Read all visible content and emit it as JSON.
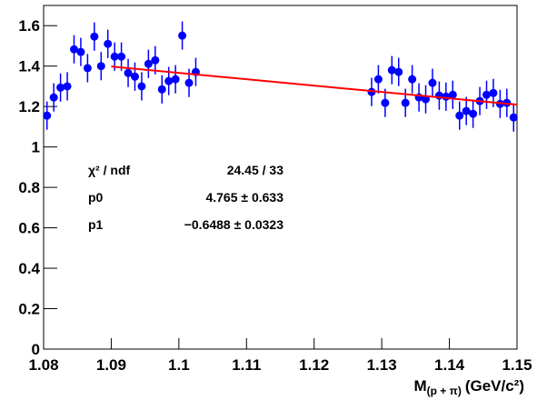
{
  "chart_data": {
    "type": "scatter",
    "xlim": [
      1.08,
      1.15
    ],
    "ylim": [
      0,
      1.7
    ],
    "xticks": [
      1.08,
      1.09,
      1.1,
      1.11,
      1.12,
      1.13,
      1.14,
      1.15
    ],
    "yticks": [
      0,
      0.2,
      0.4,
      0.6,
      0.8,
      1,
      1.2,
      1.4,
      1.6
    ],
    "xlabel": "M",
    "xlabel_sub": "(p + π)",
    "xlabel_unit": "(GeV/c²)",
    "series": [
      {
        "color": "#0000ff",
        "x": [
          1.0805,
          1.0815,
          1.0825,
          1.0835,
          1.0845,
          1.0855,
          1.0865,
          1.0875,
          1.0885,
          1.0895,
          1.0905,
          1.0915,
          1.0925,
          1.0935,
          1.0945,
          1.0955,
          1.0965,
          1.0975,
          1.0985,
          1.0995,
          1.1005,
          1.1015,
          1.1025,
          1.1285,
          1.1295,
          1.1305,
          1.1315,
          1.1325,
          1.1335,
          1.1345,
          1.1355,
          1.1365,
          1.1375,
          1.1385,
          1.1395,
          1.1405,
          1.1415,
          1.1425,
          1.1435,
          1.1445,
          1.1455,
          1.1465,
          1.1475,
          1.1485,
          1.1495
        ],
        "values": [
          1.155,
          1.245,
          1.294,
          1.3,
          1.483,
          1.47,
          1.39,
          1.546,
          1.4,
          1.51,
          1.447,
          1.447,
          1.366,
          1.348,
          1.3,
          1.411,
          1.429,
          1.285,
          1.326,
          1.335,
          1.551,
          1.317,
          1.371,
          1.272,
          1.335,
          1.218,
          1.38,
          1.371,
          1.218,
          1.335,
          1.245,
          1.236,
          1.317,
          1.254,
          1.249,
          1.258,
          1.155,
          1.178,
          1.164,
          1.227,
          1.258,
          1.267,
          1.213,
          1.218,
          1.146
        ],
        "errors": [
          0.07,
          0.07,
          0.07,
          0.07,
          0.07,
          0.07,
          0.07,
          0.07,
          0.07,
          0.07,
          0.07,
          0.07,
          0.07,
          0.07,
          0.07,
          0.07,
          0.07,
          0.07,
          0.07,
          0.07,
          0.07,
          0.07,
          0.07,
          0.07,
          0.07,
          0.07,
          0.07,
          0.07,
          0.07,
          0.07,
          0.07,
          0.07,
          0.07,
          0.07,
          0.07,
          0.07,
          0.07,
          0.07,
          0.07,
          0.07,
          0.07,
          0.07,
          0.07,
          0.07,
          0.07
        ]
      }
    ],
    "fit": {
      "color": "#ff0000",
      "x": [
        1.09,
        1.15
      ],
      "y": [
        1.398,
        1.209
      ]
    },
    "stats": [
      {
        "label": "χ² / ndf",
        "value": "24.45 / 33"
      },
      {
        "label": "p0",
        "value": "4.765 ± 0.633"
      },
      {
        "label": "p1",
        "value": "−0.6488 ± 0.0323"
      }
    ]
  }
}
